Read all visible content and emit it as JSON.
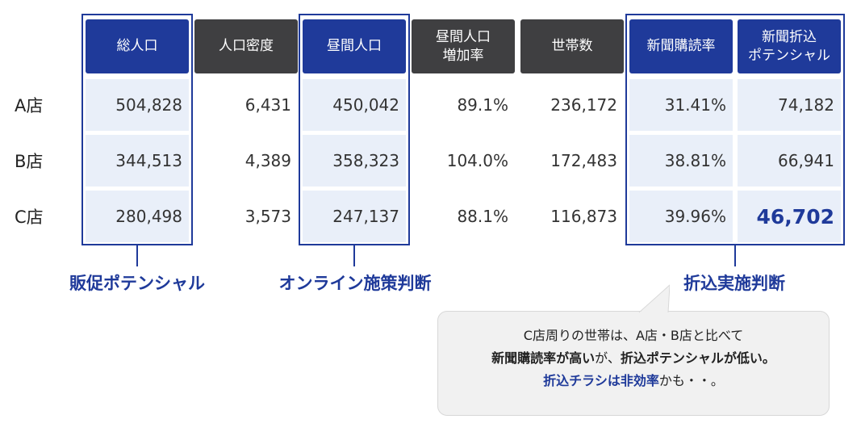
{
  "headers": [
    {
      "label": "総人口"
    },
    {
      "label": "人口密度"
    },
    {
      "label": "昼間人口"
    },
    {
      "label": "昼間人口\n増加率"
    },
    {
      "label": "世帯数"
    },
    {
      "label": "新聞購読率"
    },
    {
      "label": "新聞折込\nポテンシャル"
    }
  ],
  "rows": [
    {
      "label": "A店",
      "values": [
        "504,828",
        "6,431",
        "450,042",
        "89.1%",
        "236,172",
        "31.41%",
        "74,182"
      ]
    },
    {
      "label": "B店",
      "values": [
        "344,513",
        "4,389",
        "358,323",
        "104.0%",
        "172,483",
        "38.81%",
        "66,941"
      ]
    },
    {
      "label": "C店",
      "values": [
        "280,498",
        "3,573",
        "247,137",
        "88.1%",
        "116,873",
        "39.96%",
        "46,702"
      ]
    }
  ],
  "groups": {
    "sales": "販促ポテンシャル",
    "online": "オンライン施策判断",
    "insert": "折込実施判断"
  },
  "note": {
    "line1": "C店周りの世帯は、A店・B店と比べて",
    "line2_bold": "新聞購読率が高い",
    "line2_mid": "が、",
    "line2_bold2": "折込ポテンシャルが低い。",
    "line3_blue": "折込チラシは非効率",
    "line3_rest": "かも・・。"
  },
  "colors": {
    "accent": "#1f3a9a",
    "header_gray": "#3f3f41",
    "shade": "#e9eff9"
  }
}
